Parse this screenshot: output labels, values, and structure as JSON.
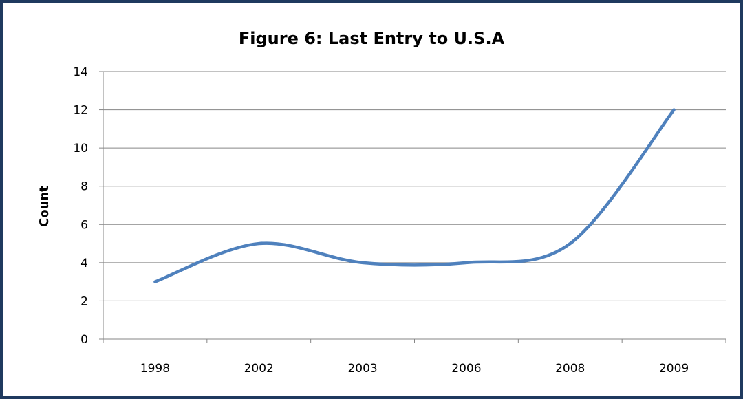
{
  "chart_data": {
    "type": "line",
    "title": "Figure 6: Last Entry to U.S.A",
    "xlabel": "",
    "ylabel": "Count",
    "categories": [
      "1998",
      "2002",
      "2003",
      "2006",
      "2008",
      "2009"
    ],
    "series": [
      {
        "values": [
          3,
          5,
          4,
          4,
          5,
          12
        ]
      }
    ],
    "ylim": [
      0,
      14
    ],
    "yticks": [
      0,
      2,
      4,
      6,
      8,
      10,
      12,
      14
    ],
    "grid": true,
    "legend": "none",
    "line_color": "#4f81bd"
  }
}
